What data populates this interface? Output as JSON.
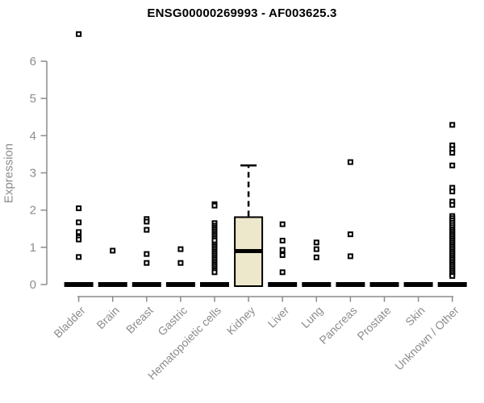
{
  "chart_data": {
    "type": "boxplot",
    "title": "ENSG00000269993 - AF003625.3",
    "xlabel": "",
    "ylabel": "Expression",
    "ylim": [
      0,
      6
    ],
    "yticks": [
      0,
      1,
      2,
      3,
      4,
      5,
      6
    ],
    "grid": false,
    "legend": "none",
    "colors": {
      "box_fill": "#EDE8CC",
      "box_border": "#000000",
      "marker": "#000000",
      "axis": "#8C8C8C",
      "axis_text": "#8C8C8C",
      "title_text": "#000000",
      "background": "#FFFFFF"
    },
    "categories": [
      "Bladder",
      "Brain",
      "Breast",
      "Gastric",
      "Hematopoietic cells",
      "Kidney",
      "Liver",
      "Lung",
      "Pancreas",
      "Prostate",
      "Skin",
      "Unknown / Other"
    ],
    "series": [
      {
        "category": "Bladder",
        "q1": 0,
        "median": 0,
        "q3": 0,
        "whisker_low": 0,
        "whisker_high": 0,
        "outliers": [
          6.73,
          2.05,
          1.67,
          1.41,
          1.27,
          1.21,
          0.74
        ]
      },
      {
        "category": "Brain",
        "q1": 0,
        "median": 0,
        "q3": 0,
        "whisker_low": 0,
        "whisker_high": 0,
        "outliers": [
          0.91
        ]
      },
      {
        "category": "Breast",
        "q1": 0,
        "median": 0,
        "q3": 0,
        "whisker_low": 0,
        "whisker_high": 0,
        "outliers": [
          1.76,
          1.69,
          1.47,
          0.82,
          0.58
        ]
      },
      {
        "category": "Gastric",
        "q1": 0,
        "median": 0,
        "q3": 0,
        "whisker_low": 0,
        "whisker_high": 0,
        "outliers": [
          0.95,
          0.58
        ]
      },
      {
        "category": "Hematopoietic cells",
        "q1": 0,
        "median": 0,
        "q3": 0,
        "whisker_low": 0,
        "whisker_high": 0,
        "outliers": [
          2.16,
          2.12,
          1.65,
          1.58,
          1.53,
          1.48,
          1.43,
          1.38,
          1.33,
          1.28,
          1.23,
          1.18,
          1.08,
          1.03,
          0.98,
          0.93,
          0.88,
          0.83,
          0.78,
          0.73,
          0.68,
          0.63,
          0.58,
          0.53,
          0.48,
          0.43,
          0.38,
          0.33
        ]
      },
      {
        "category": "Kidney",
        "q1": 0,
        "median": 0.9,
        "q3": 1.81,
        "whisker_low": 0,
        "whisker_high": 3.2,
        "outliers": []
      },
      {
        "category": "Liver",
        "q1": 0,
        "median": 0,
        "q3": 0,
        "whisker_low": 0,
        "whisker_high": 0,
        "outliers": [
          1.62,
          1.18,
          0.93,
          0.79,
          0.33
        ]
      },
      {
        "category": "Lung",
        "q1": 0,
        "median": 0,
        "q3": 0,
        "whisker_low": 0,
        "whisker_high": 0,
        "outliers": [
          1.13,
          0.95,
          0.73
        ]
      },
      {
        "category": "Pancreas",
        "q1": 0,
        "median": 0,
        "q3": 0,
        "whisker_low": 0,
        "whisker_high": 0,
        "outliers": [
          3.29,
          1.35,
          0.76
        ]
      },
      {
        "category": "Prostate",
        "q1": 0,
        "median": 0,
        "q3": 0,
        "whisker_low": 0,
        "whisker_high": 0,
        "outliers": []
      },
      {
        "category": "Skin",
        "q1": 0,
        "median": 0,
        "q3": 0,
        "whisker_low": 0,
        "whisker_high": 0,
        "outliers": []
      },
      {
        "category": "Unknown / Other",
        "q1": 0,
        "median": 0,
        "q3": 0,
        "whisker_low": 0,
        "whisker_high": 0,
        "outliers": [
          4.29,
          3.74,
          3.64,
          3.54,
          3.2,
          2.6,
          2.5,
          2.23,
          2.14,
          1.84,
          1.78,
          1.72,
          1.66,
          1.6,
          1.54,
          1.48,
          1.43,
          1.38,
          1.33,
          1.28,
          1.23,
          1.18,
          1.13,
          1.08,
          1.03,
          0.98,
          0.93,
          0.88,
          0.83,
          0.78,
          0.73,
          0.68,
          0.63,
          0.58,
          0.53,
          0.48,
          0.43,
          0.38,
          0.33,
          0.28,
          0.23
        ]
      }
    ]
  }
}
